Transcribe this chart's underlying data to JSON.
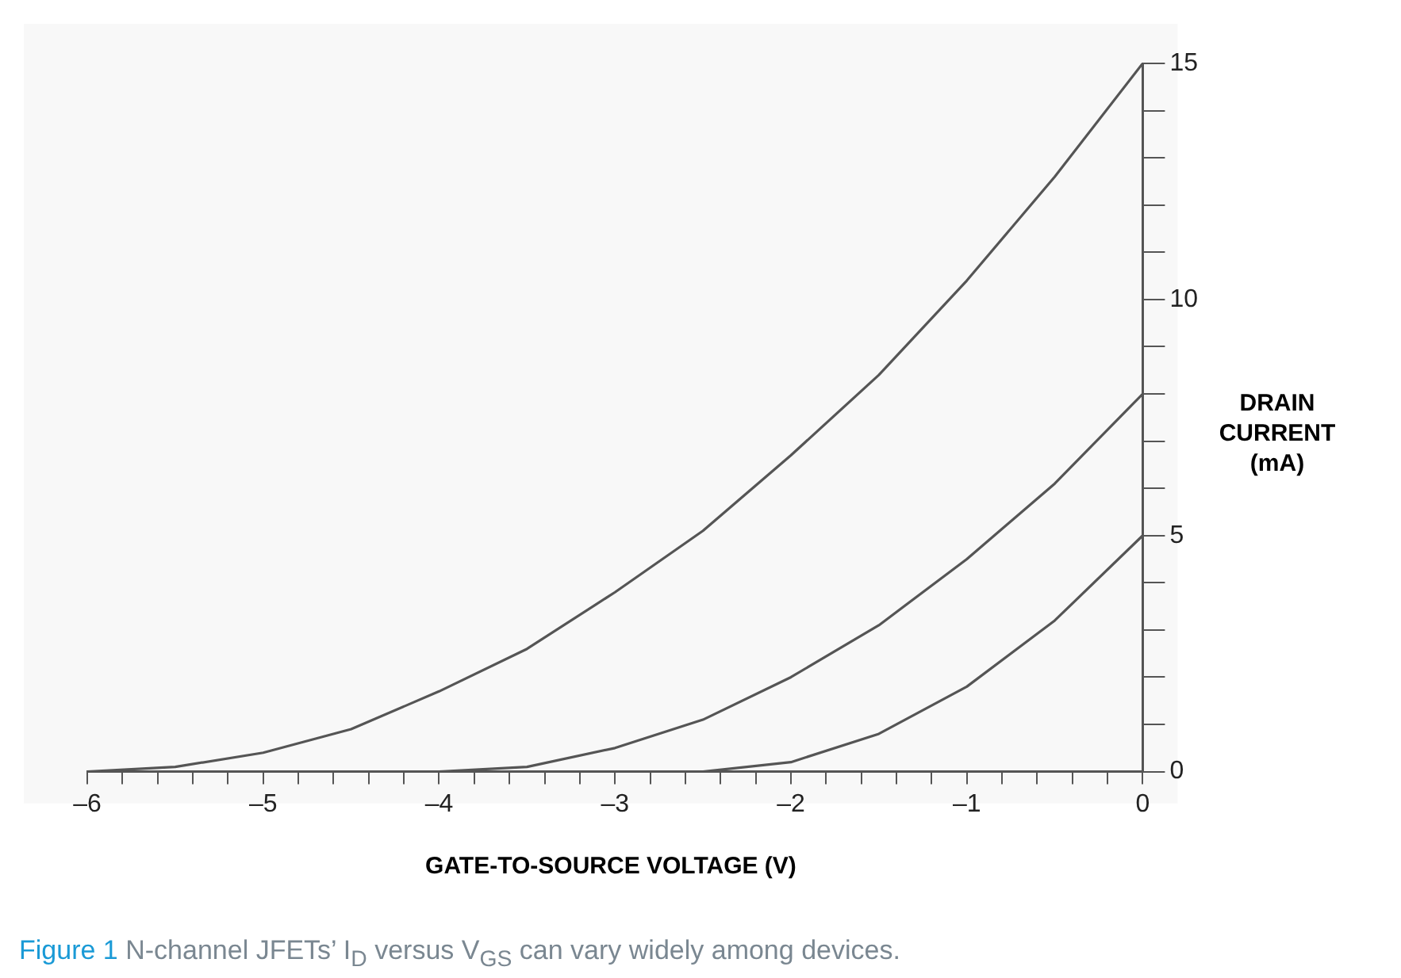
{
  "chart_data": {
    "type": "line",
    "xlabel": "GATE-TO-SOURCE VOLTAGE (V)",
    "ylabel": "DRAIN CURRENT (mA)",
    "annotations": [
      "Figure 1",
      "N-channel JFETs’ I$_{D}$ versus V$_{GS}$ can vary widely among devices."
    ],
    "xlim": [
      -6,
      0
    ],
    "ylim": [
      0,
      15
    ],
    "xticks": [
      {
        "value": -6,
        "label": "–6"
      },
      {
        "value": -5.8,
        "label": null
      },
      {
        "value": -5.6,
        "label": null
      },
      {
        "value": -5.4,
        "label": null
      },
      {
        "value": -5.2,
        "label": null
      },
      {
        "value": -5,
        "label": "–5"
      },
      {
        "value": -4.8,
        "label": null
      },
      {
        "value": -4.6,
        "label": null
      },
      {
        "value": -4.4,
        "label": null
      },
      {
        "value": -4.2,
        "label": null
      },
      {
        "value": -4,
        "label": "–4"
      },
      {
        "value": -3.8,
        "label": null
      },
      {
        "value": -3.6,
        "label": null
      },
      {
        "value": -3.4,
        "label": null
      },
      {
        "value": -3.2,
        "label": null
      },
      {
        "value": -3,
        "label": "–3"
      },
      {
        "value": -2.8,
        "label": null
      },
      {
        "value": -2.6,
        "label": null
      },
      {
        "value": -2.4,
        "label": null
      },
      {
        "value": -2.2,
        "label": null
      },
      {
        "value": -2,
        "label": "–2"
      },
      {
        "value": -1.8,
        "label": null
      },
      {
        "value": -1.6,
        "label": null
      },
      {
        "value": -1.4,
        "label": null
      },
      {
        "value": -1.2,
        "label": null
      },
      {
        "value": -1,
        "label": "–1"
      },
      {
        "value": -0.8,
        "label": null
      },
      {
        "value": -0.6,
        "label": null
      },
      {
        "value": -0.4,
        "label": null
      },
      {
        "value": -0.2,
        "label": null
      },
      0
    ],
    "yticks": [
      0,
      {
        "value": 1,
        "label": null
      },
      {
        "value": 2,
        "label": null
      },
      {
        "value": 3,
        "label": null
      },
      {
        "value": 4,
        "label": null
      },
      5,
      {
        "value": 6,
        "label": null
      },
      {
        "value": 7,
        "label": null
      },
      {
        "value": 8,
        "label": null
      },
      {
        "value": 9,
        "label": null
      },
      10,
      {
        "value": 11,
        "label": null
      },
      {
        "value": 12,
        "label": null
      },
      {
        "value": 13,
        "label": null
      },
      {
        "value": 14,
        "label": null
      },
      15
    ],
    "grid": false,
    "legend": false,
    "marker": "none",
    "line_style": "solid",
    "series": [
      {
        "color": "#555555",
        "x": [
          -6,
          -5.5,
          -5,
          -4.5,
          -4,
          -3.5,
          -3,
          -2.5,
          -2,
          -1.5,
          -1,
          -0.5,
          0
        ],
        "values": [
          0,
          0.1,
          0.4,
          0.9,
          1.7,
          2.6,
          3.8,
          5.1,
          6.7,
          8.4,
          10.4,
          12.6,
          15
        ]
      },
      {
        "color": "#555555",
        "x": [
          -4,
          -3.5,
          -3,
          -2.5,
          -2,
          -1.5,
          -1,
          -0.5,
          0
        ],
        "values": [
          0,
          0.1,
          0.5,
          1.1,
          2,
          3.1,
          4.5,
          6.1,
          8
        ]
      },
      {
        "color": "#555555",
        "x": [
          -2.5,
          -2,
          -1.5,
          -1,
          -0.5,
          0
        ],
        "values": [
          0,
          0.2,
          0.8,
          1.8,
          3.2,
          5
        ]
      }
    ]
  }
}
